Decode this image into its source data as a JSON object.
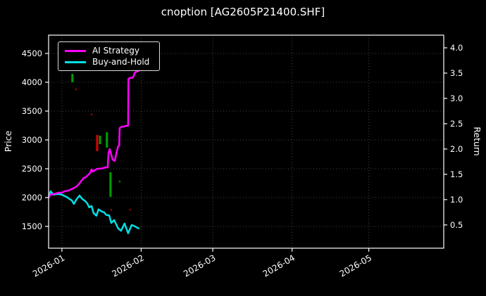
{
  "title": "cnoption [AG2605P21400.SHF]",
  "legend": {
    "items": [
      {
        "label": "AI Strategy",
        "color": "#ff00ff"
      },
      {
        "label": "Buy-and-Hold",
        "color": "#00e0e6"
      }
    ]
  },
  "axes": {
    "left_label": "Price",
    "right_label": "Return"
  },
  "chart_data": {
    "type": "line",
    "title": "cnoption [AG2605P21400.SHF]",
    "xlabel": "",
    "ylabel_left": "Price",
    "ylabel_right": "Return",
    "legend_position": "upper left",
    "grid": "dotted",
    "background": "#000000",
    "x_unit": "day index, 1 = 2026-01-01",
    "xlim_days": [
      -4.2,
      150.3
    ],
    "ylim_price": [
      1122,
      4817
    ],
    "ylim_return": [
      0.04,
      4.25
    ],
    "x_ticks": [
      {
        "label": "2026-01",
        "day": 1
      },
      {
        "label": "2026-02",
        "day": 32
      },
      {
        "label": "2026-03",
        "day": 60
      },
      {
        "label": "2026-04",
        "day": 91
      },
      {
        "label": "2026-05",
        "day": 121
      }
    ],
    "left_ticks": [
      1500,
      2000,
      2500,
      3000,
      3500,
      4000,
      4500
    ],
    "right_ticks": [
      0.5,
      1.0,
      1.5,
      2.0,
      2.5,
      3.0,
      3.5,
      4.0
    ],
    "series": [
      {
        "name": "Buy-and-Hold",
        "color": "#00e0e6",
        "axis": "price",
        "points": [
          [
            -4.2,
            2000
          ],
          [
            -3.4,
            2110
          ],
          [
            -2.3,
            2050
          ],
          [
            -1.2,
            2060
          ],
          [
            -0.1,
            2060
          ],
          [
            1,
            2050
          ],
          [
            2.1,
            2025
          ],
          [
            2.9,
            2010
          ],
          [
            4,
            1975
          ],
          [
            4.9,
            1950
          ],
          [
            5.7,
            1890
          ],
          [
            6.8,
            1975
          ],
          [
            7.9,
            2035
          ],
          [
            9,
            1975
          ],
          [
            10.1,
            1940
          ],
          [
            10.9,
            1900
          ],
          [
            11.7,
            1830
          ],
          [
            12.6,
            1855
          ],
          [
            13.4,
            1730
          ],
          [
            14.5,
            1685
          ],
          [
            15.3,
            1795
          ],
          [
            16.7,
            1755
          ],
          [
            17.5,
            1745
          ],
          [
            18.3,
            1700
          ],
          [
            19.5,
            1690
          ],
          [
            20.3,
            1560
          ],
          [
            21.4,
            1610
          ],
          [
            23,
            1465
          ],
          [
            24.1,
            1425
          ],
          [
            25.5,
            1550
          ],
          [
            26.9,
            1380
          ],
          [
            28.3,
            1525
          ],
          [
            29.6,
            1500
          ],
          [
            31,
            1465
          ]
        ]
      },
      {
        "name": "AI Strategy",
        "color": "#ff00ff",
        "axis": "price",
        "points": [
          [
            -4.2,
            2000
          ],
          [
            -3.4,
            2050
          ],
          [
            -2.3,
            2060
          ],
          [
            -1.2,
            2075
          ],
          [
            -0.1,
            2085
          ],
          [
            1,
            2085
          ],
          [
            2.1,
            2110
          ],
          [
            3.2,
            2120
          ],
          [
            4.3,
            2135
          ],
          [
            5.4,
            2160
          ],
          [
            6.5,
            2185
          ],
          [
            7.6,
            2230
          ],
          [
            8.7,
            2295
          ],
          [
            9.5,
            2340
          ],
          [
            10.4,
            2355
          ],
          [
            11.2,
            2390
          ],
          [
            12,
            2425
          ],
          [
            12.6,
            2490
          ],
          [
            13.1,
            2450
          ],
          [
            13.9,
            2475
          ],
          [
            14.8,
            2500
          ],
          [
            15.9,
            2500
          ],
          [
            17,
            2510
          ],
          [
            18.1,
            2525
          ],
          [
            18.9,
            2525
          ],
          [
            19.2,
            2770
          ],
          [
            19.7,
            2840
          ],
          [
            20.3,
            2745
          ],
          [
            20.8,
            2660
          ],
          [
            21.7,
            2635
          ],
          [
            22.5,
            2805
          ],
          [
            23,
            2890
          ],
          [
            23.4,
            2900
          ],
          [
            23.6,
            3205
          ],
          [
            24.4,
            3230
          ],
          [
            25.2,
            3230
          ],
          [
            26.1,
            3245
          ],
          [
            26.6,
            3245
          ],
          [
            26.9,
            3245
          ],
          [
            27,
            4060
          ],
          [
            27.7,
            4075
          ],
          [
            28.5,
            4075
          ],
          [
            29.1,
            4110
          ],
          [
            29.4,
            4160
          ],
          [
            30.2,
            4185
          ],
          [
            31,
            4195
          ]
        ]
      }
    ],
    "signal_bars": [
      {
        "day": 5.1,
        "price_low": 4000,
        "price_high": 4146,
        "color": "#00a000"
      },
      {
        "day": 14.8,
        "price_low": 2805,
        "price_high": 3085,
        "color": "#e00000"
      },
      {
        "day": 15.9,
        "price_low": 2927,
        "price_high": 3073,
        "color": "#00a000"
      },
      {
        "day": 18.6,
        "price_low": 2866,
        "price_high": 3134,
        "color": "#00a000"
      },
      {
        "day": 20.0,
        "price_low": 2012,
        "price_high": 2439,
        "color": "#00a000"
      }
    ],
    "signal_dots": [
      {
        "day": 6.5,
        "price": 3878,
        "color": "#9b0000"
      },
      {
        "day": 12.6,
        "price": 3440,
        "color": "#9b0000"
      },
      {
        "day": 23.6,
        "price": 2280,
        "color": "#007800"
      },
      {
        "day": 20.3,
        "price": 1790,
        "color": "#9b0000"
      },
      {
        "day": 27.7,
        "price": 1790,
        "color": "#9b0000"
      }
    ]
  }
}
